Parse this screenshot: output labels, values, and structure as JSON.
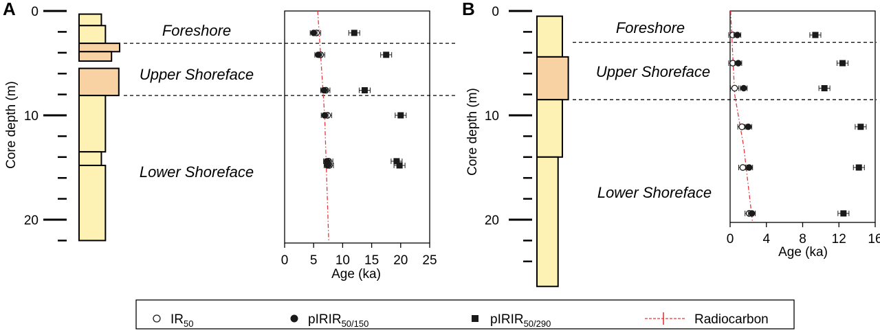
{
  "colors": {
    "light": "#fdf1b3",
    "dark": "#f9d2a3",
    "radiocarbon": "#e8343b",
    "marker": "#1a1a1a",
    "dashed": "#000000"
  },
  "legend": {
    "ir50_main": "IR",
    "ir50_sub": "50",
    "p150_main": "pIRIR",
    "p150_sub": "50/150",
    "p290_main": "pIRIR",
    "p290_sub": "50/290",
    "radiocarbon": "Radiocarbon"
  },
  "chart_data": [
    {
      "type": "scatter",
      "panel_label": "A",
      "depth_axis_label": "Core depth (m)",
      "depth_range": [
        0,
        22
      ],
      "depth_ticks": [
        "0",
        "10",
        "20"
      ],
      "xlabel": "Age (ka)",
      "xlim": [
        0,
        25
      ],
      "x_ticks": [
        "0",
        "5",
        "10",
        "15",
        "20",
        "25"
      ],
      "zones": [
        "Foreshore",
        "Upper Shoreface",
        "Lower Shoreface"
      ],
      "zone_boundaries_m": [
        3.1,
        8.1
      ],
      "core_segments": [
        {
          "top": 0.3,
          "bottom": 1.4,
          "width_frac": 0.55,
          "facies": "light"
        },
        {
          "top": 1.4,
          "bottom": 3.1,
          "width_frac": 0.65,
          "facies": "light"
        },
        {
          "top": 3.1,
          "bottom": 3.9,
          "width_frac": 1.0,
          "facies": "dark"
        },
        {
          "top": 3.9,
          "bottom": 4.8,
          "width_frac": 0.8,
          "facies": "dark"
        },
        {
          "top": 5.5,
          "bottom": 8.1,
          "width_frac": 0.98,
          "facies": "dark"
        },
        {
          "top": 8.1,
          "bottom": 13.5,
          "width_frac": 0.65,
          "facies": "light"
        },
        {
          "top": 13.5,
          "bottom": 14.8,
          "width_frac": 0.55,
          "facies": "light"
        },
        {
          "top": 14.8,
          "bottom": 22.0,
          "width_frac": 0.65,
          "facies": "light"
        }
      ],
      "series": [
        {
          "name": "IR50",
          "points": [
            [
              5.5,
              2.1
            ],
            [
              6.2,
              4.2
            ],
            [
              7.1,
              7.6
            ],
            [
              7.4,
              10.0
            ],
            [
              7.6,
              14.4
            ],
            [
              7.7,
              14.8
            ]
          ]
        },
        {
          "name": "pIRIR50/150",
          "points": [
            [
              5.0,
              2.1
            ],
            [
              5.8,
              4.2
            ],
            [
              6.8,
              7.6
            ],
            [
              6.9,
              10.0
            ],
            [
              7.3,
              14.4
            ],
            [
              7.4,
              14.8
            ]
          ]
        },
        {
          "name": "pIRIR50/290",
          "points": [
            [
              12.0,
              2.1
            ],
            [
              17.5,
              4.2
            ],
            [
              13.8,
              7.6
            ],
            [
              20.0,
              10.0
            ],
            [
              19.3,
              14.4
            ],
            [
              19.8,
              14.8
            ]
          ]
        },
        {
          "name": "Radiocarbon",
          "points": [
            [
              5.7,
              0.0
            ],
            [
              6.9,
              10.0
            ],
            [
              7.6,
              22.0
            ]
          ]
        }
      ]
    },
    {
      "type": "scatter",
      "panel_label": "B",
      "depth_axis_label": "Core depth (m)",
      "depth_range": [
        0,
        26
      ],
      "depth_ticks": [
        "0",
        "10",
        "20"
      ],
      "xlabel": "Age (ka)",
      "xlim": [
        0,
        16
      ],
      "x_ticks": [
        "0",
        "4",
        "8",
        "12",
        "16"
      ],
      "zones": [
        "Foreshore",
        "Upper Shoreface",
        "Lower Shoreface"
      ],
      "zone_boundaries_m": [
        3.0,
        8.5
      ],
      "core_segments": [
        {
          "top": 0.5,
          "bottom": 4.4,
          "width_frac": 0.77,
          "facies": "light"
        },
        {
          "top": 4.4,
          "bottom": 8.5,
          "width_frac": 0.95,
          "facies": "dark"
        },
        {
          "top": 8.5,
          "bottom": 14.0,
          "width_frac": 0.77,
          "facies": "light"
        },
        {
          "top": 14.0,
          "bottom": 26.4,
          "width_frac": 0.64,
          "facies": "light"
        }
      ],
      "series": [
        {
          "name": "IR50",
          "points": [
            [
              0.3,
              2.3
            ],
            [
              0.3,
              5.0
            ],
            [
              0.5,
              7.4
            ],
            [
              1.3,
              11.1
            ],
            [
              1.4,
              15.0
            ],
            [
              2.1,
              19.4
            ]
          ]
        },
        {
          "name": "pIRIR50/150",
          "points": [
            [
              0.8,
              2.3
            ],
            [
              0.9,
              5.0
            ],
            [
              1.5,
              7.4
            ],
            [
              2.0,
              11.1
            ],
            [
              2.1,
              15.0
            ],
            [
              2.4,
              19.4
            ]
          ]
        },
        {
          "name": "pIRIR50/290",
          "points": [
            [
              9.4,
              2.3
            ],
            [
              12.4,
              5.0
            ],
            [
              10.4,
              7.4
            ],
            [
              14.4,
              11.1
            ],
            [
              14.2,
              15.0
            ],
            [
              12.5,
              19.4
            ]
          ]
        },
        {
          "name": "Radiocarbon",
          "points": [
            [
              0.05,
              0.0
            ],
            [
              0.5,
              8.0
            ],
            [
              1.5,
              13.0
            ],
            [
              2.5,
              20.5
            ]
          ]
        }
      ]
    }
  ]
}
